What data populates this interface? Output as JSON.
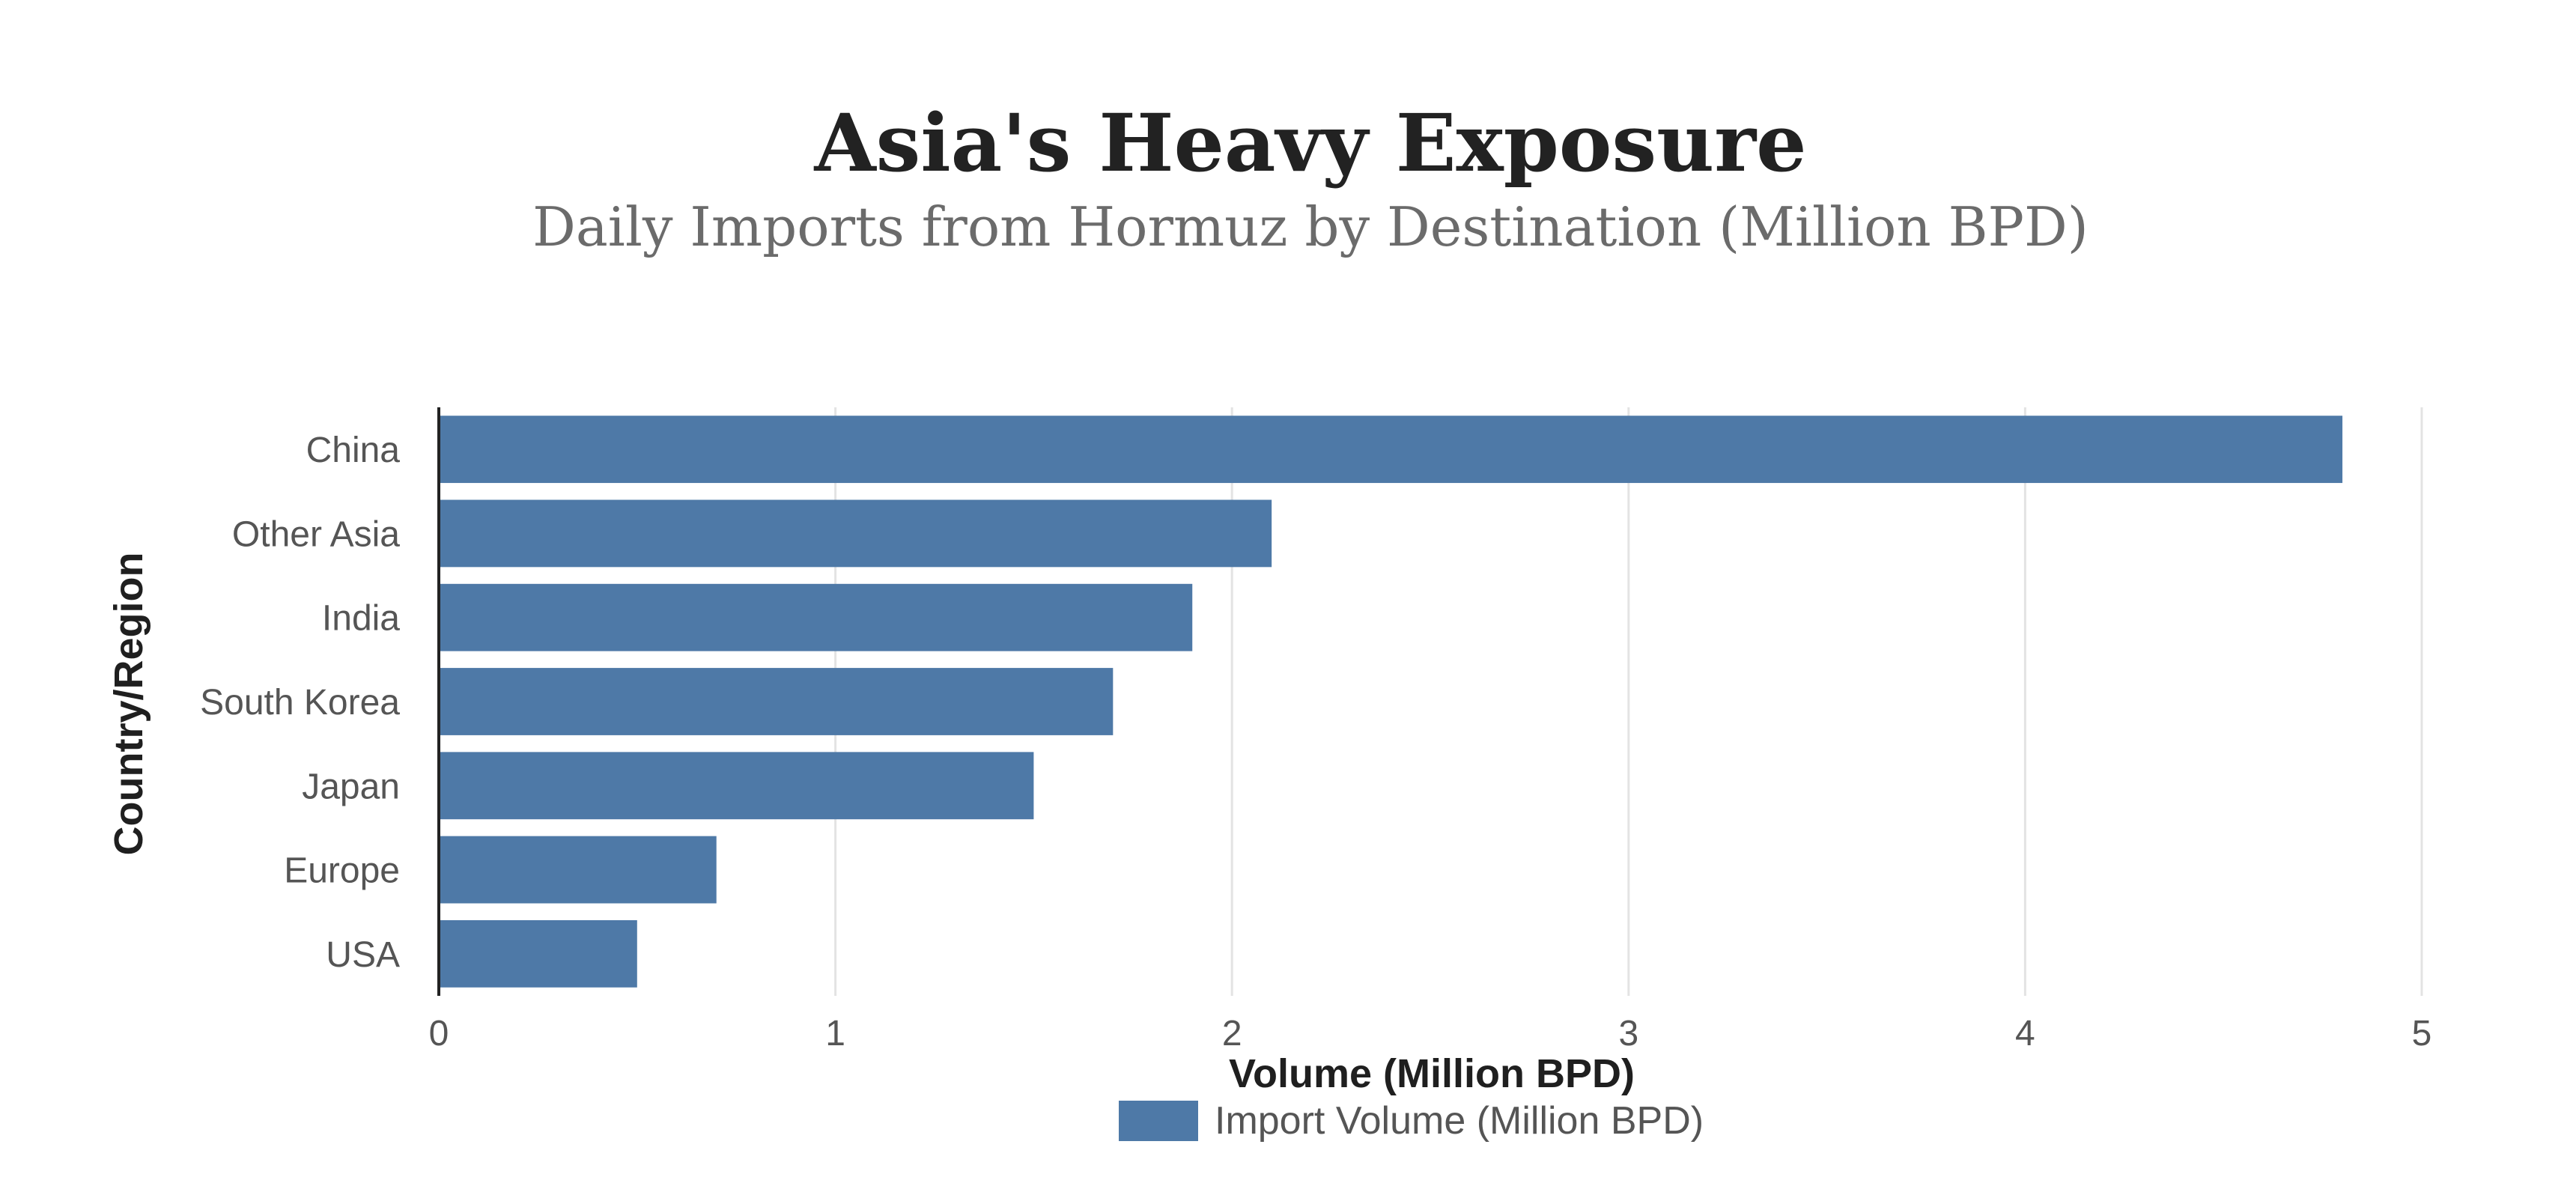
{
  "chart_data": {
    "type": "bar",
    "orientation": "horizontal",
    "title": "Asia's Heavy Exposure",
    "subtitle": "Daily Imports from Hormuz by Destination (Million BPD)",
    "xlabel": "Volume (Million BPD)",
    "ylabel": "Country/Region",
    "categories": [
      "China",
      "Other Asia",
      "India",
      "South Korea",
      "Japan",
      "Europe",
      "USA"
    ],
    "series": [
      {
        "name": "Import Volume (Million BPD)",
        "values": [
          4.8,
          2.1,
          1.9,
          1.7,
          1.5,
          0.7,
          0.5
        ],
        "color": "#4e79a7"
      }
    ],
    "xlim": [
      0,
      5
    ],
    "xticks": [
      0,
      1,
      2,
      3,
      4,
      5
    ],
    "grid": "vertical",
    "legend": "bottom-center"
  }
}
